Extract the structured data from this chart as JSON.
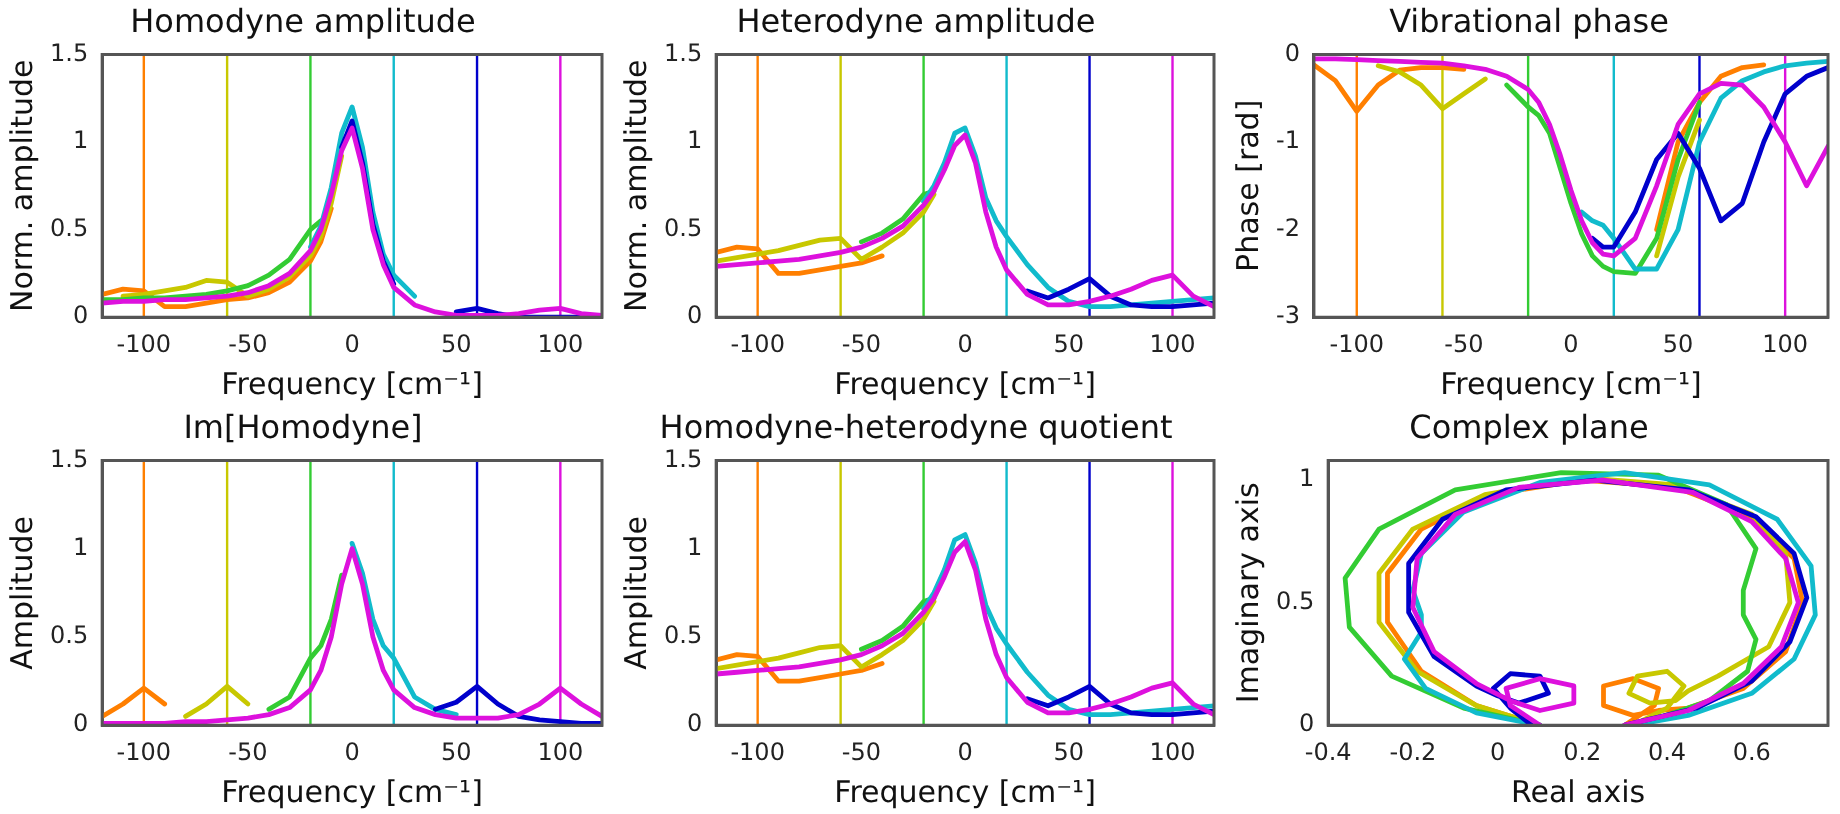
{
  "chart_data": [
    {
      "type": "line",
      "title": "Homodyne amplitude",
      "xlabel": "Frequency [cm⁻¹]",
      "ylabel": "Norm. amplitude",
      "xlim": [
        -120,
        120
      ],
      "xticks": [
        -100,
        -50,
        0,
        50,
        100
      ],
      "ylim": [
        0,
        1.5
      ],
      "yticks": [
        0,
        0.5,
        1,
        1.5
      ],
      "x": [
        -120,
        -110,
        -100,
        -90,
        -80,
        -70,
        -60,
        -50,
        -40,
        -30,
        -20,
        -15,
        -10,
        -5,
        0,
        5,
        10,
        15,
        20,
        30,
        40,
        50,
        60,
        70,
        80,
        90,
        100,
        110,
        120
      ],
      "ref_lines": [
        {
          "axis": "x",
          "value": -100,
          "color": "#ff7f00"
        },
        {
          "axis": "x",
          "value": -60,
          "color": "#c8c800"
        },
        {
          "axis": "x",
          "value": -20,
          "color": "#33cc33"
        },
        {
          "axis": "x",
          "value": 20,
          "color": "#11bbcc"
        },
        {
          "axis": "x",
          "value": 60,
          "color": "#0000cc"
        },
        {
          "axis": "x",
          "value": 100,
          "color": "#dd11dd"
        }
      ],
      "series": [
        {
          "color": "#ff7f00",
          "values": [
            0.13,
            0.16,
            0.15,
            0.06,
            0.06,
            0.08,
            0.1,
            0.11,
            0.14,
            0.2,
            0.32,
            0.43,
            0.62,
            null,
            null,
            null,
            null,
            null,
            null,
            null,
            null,
            null,
            null,
            null,
            null,
            null,
            null,
            null,
            null
          ]
        },
        {
          "color": "#c8c800",
          "values": [
            null,
            0.12,
            0.13,
            0.15,
            0.17,
            0.21,
            0.2,
            0.12,
            0.16,
            0.23,
            0.35,
            0.46,
            0.65,
            0.92,
            null,
            null,
            null,
            null,
            null,
            null,
            null,
            null,
            null,
            null,
            null,
            null,
            null,
            null,
            null
          ]
        },
        {
          "color": "#33cc33",
          "values": [
            0.1,
            0.1,
            0.11,
            0.11,
            0.12,
            0.13,
            0.15,
            0.18,
            0.24,
            0.33,
            0.5,
            0.55,
            null,
            null,
            null,
            null,
            null,
            null,
            null,
            null,
            null,
            null,
            null,
            null,
            null,
            null,
            null,
            null,
            null
          ]
        },
        {
          "color": "#11bbcc",
          "values": [
            null,
            null,
            null,
            null,
            null,
            null,
            null,
            null,
            null,
            null,
            0.4,
            0.52,
            0.74,
            1.05,
            1.2,
            0.97,
            0.6,
            0.36,
            0.24,
            0.12,
            null,
            null,
            null,
            null,
            null,
            null,
            null,
            null,
            null
          ]
        },
        {
          "color": "#0000cc",
          "values": [
            null,
            null,
            null,
            null,
            null,
            null,
            null,
            null,
            null,
            null,
            null,
            null,
            null,
            0.97,
            1.12,
            0.88,
            0.53,
            0.32,
            0.19,
            null,
            null,
            0.03,
            0.05,
            0.02,
            0,
            0,
            0,
            0,
            null
          ]
        },
        {
          "color": "#dd11dd",
          "values": [
            0.08,
            0.09,
            0.09,
            0.1,
            0.1,
            0.11,
            0.12,
            0.14,
            0.18,
            0.25,
            0.38,
            0.5,
            0.7,
            0.95,
            1.08,
            0.85,
            0.5,
            0.3,
            0.17,
            0.07,
            0.03,
            0.01,
            0.01,
            0.01,
            0.02,
            0.04,
            0.05,
            0.02,
            0.01
          ]
        }
      ]
    },
    {
      "type": "line",
      "title": "Heterodyne amplitude",
      "xlabel": "Frequency [cm⁻¹]",
      "ylabel": "Norm. amplitude",
      "xlim": [
        -120,
        120
      ],
      "xticks": [
        -100,
        -50,
        0,
        50,
        100
      ],
      "ylim": [
        0,
        1.5
      ],
      "yticks": [
        0,
        0.5,
        1,
        1.5
      ],
      "x": [
        -120,
        -110,
        -100,
        -90,
        -80,
        -70,
        -60,
        -50,
        -40,
        -30,
        -20,
        -15,
        -10,
        -5,
        0,
        5,
        10,
        15,
        20,
        30,
        40,
        50,
        60,
        70,
        80,
        90,
        100,
        110,
        120
      ],
      "ref_lines": [
        {
          "axis": "x",
          "value": -100,
          "color": "#ff7f00"
        },
        {
          "axis": "x",
          "value": -60,
          "color": "#c8c800"
        },
        {
          "axis": "x",
          "value": -20,
          "color": "#33cc33"
        },
        {
          "axis": "x",
          "value": 20,
          "color": "#11bbcc"
        },
        {
          "axis": "x",
          "value": 60,
          "color": "#0000cc"
        },
        {
          "axis": "x",
          "value": 100,
          "color": "#dd11dd"
        }
      ],
      "series": [
        {
          "color": "#ff7f00",
          "values": [
            0.37,
            0.4,
            0.39,
            0.25,
            0.25,
            0.27,
            0.29,
            0.31,
            0.35,
            null,
            null,
            null,
            null,
            null,
            null,
            null,
            null,
            null,
            null,
            null,
            null,
            null,
            null,
            null,
            null,
            null,
            null,
            null,
            null
          ]
        },
        {
          "color": "#c8c800",
          "values": [
            0.32,
            0.34,
            0.36,
            0.38,
            0.41,
            0.44,
            0.45,
            0.33,
            0.4,
            0.48,
            0.6,
            0.7,
            null,
            null,
            null,
            null,
            null,
            null,
            null,
            null,
            null,
            null,
            null,
            null,
            null,
            null,
            null,
            null,
            null
          ]
        },
        {
          "color": "#33cc33",
          "values": [
            null,
            null,
            null,
            null,
            null,
            null,
            null,
            0.43,
            0.48,
            0.56,
            0.7,
            0.72,
            null,
            null,
            null,
            null,
            null,
            null,
            null,
            null,
            null,
            null,
            null,
            null,
            null,
            null,
            null,
            null,
            null
          ]
        },
        {
          "color": "#11bbcc",
          "values": [
            null,
            null,
            null,
            null,
            null,
            null,
            null,
            null,
            null,
            null,
            0.66,
            0.75,
            0.88,
            1.05,
            1.08,
            0.92,
            0.68,
            0.55,
            0.46,
            0.3,
            0.17,
            0.09,
            0.06,
            0.06,
            0.07,
            0.08,
            0.09,
            0.1,
            0.11
          ]
        },
        {
          "color": "#0000cc",
          "values": [
            null,
            null,
            null,
            null,
            null,
            null,
            null,
            null,
            null,
            null,
            null,
            null,
            null,
            null,
            null,
            null,
            null,
            null,
            null,
            0.15,
            0.11,
            0.16,
            0.22,
            0.12,
            0.07,
            0.06,
            0.06,
            0.07,
            0.08
          ]
        },
        {
          "color": "#dd11dd",
          "values": [
            0.29,
            0.3,
            0.31,
            0.32,
            0.33,
            0.35,
            0.37,
            0.4,
            0.45,
            0.52,
            0.64,
            0.72,
            0.84,
            0.98,
            1.04,
            0.88,
            0.6,
            0.4,
            0.27,
            0.13,
            0.07,
            0.07,
            0.09,
            0.12,
            0.16,
            0.21,
            0.24,
            0.12,
            0.06
          ]
        }
      ]
    },
    {
      "type": "line",
      "title": "Vibrational phase",
      "xlabel": "Frequency [cm⁻¹]",
      "ylabel": "Phase [rad]",
      "xlim": [
        -120,
        120
      ],
      "xticks": [
        -100,
        -50,
        0,
        50,
        100
      ],
      "ylim": [
        -3,
        0
      ],
      "yticks": [
        -3,
        -2,
        -1,
        0
      ],
      "x": [
        -120,
        -110,
        -100,
        -90,
        -80,
        -70,
        -60,
        -50,
        -40,
        -30,
        -20,
        -15,
        -10,
        -5,
        0,
        5,
        10,
        15,
        20,
        30,
        40,
        50,
        60,
        70,
        80,
        90,
        100,
        110,
        120
      ],
      "ref_lines": [
        {
          "axis": "x",
          "value": -100,
          "color": "#ff7f00"
        },
        {
          "axis": "x",
          "value": -60,
          "color": "#c8c800"
        },
        {
          "axis": "x",
          "value": -20,
          "color": "#33cc33"
        },
        {
          "axis": "x",
          "value": 20,
          "color": "#11bbcc"
        },
        {
          "axis": "x",
          "value": 60,
          "color": "#0000cc"
        },
        {
          "axis": "x",
          "value": 100,
          "color": "#dd11dd"
        }
      ],
      "series": [
        {
          "color": "#ff7f00",
          "values": [
            -0.12,
            -0.3,
            -0.65,
            -0.35,
            -0.18,
            -0.15,
            -0.15,
            -0.17,
            null,
            null,
            null,
            null,
            null,
            null,
            null,
            null,
            null,
            null,
            null,
            null,
            -2.0,
            -1.0,
            -0.55,
            -0.25,
            -0.15,
            -0.12,
            null,
            null,
            null
          ]
        },
        {
          "color": "#c8c800",
          "values": [
            null,
            null,
            null,
            -0.13,
            -0.2,
            -0.35,
            -0.62,
            -0.45,
            -0.28,
            null,
            null,
            null,
            null,
            null,
            null,
            null,
            null,
            null,
            null,
            null,
            -2.3,
            -1.4,
            -0.75,
            null,
            null,
            null,
            null,
            null,
            null
          ]
        },
        {
          "color": "#33cc33",
          "values": [
            null,
            null,
            null,
            null,
            null,
            null,
            null,
            null,
            null,
            -0.35,
            -0.6,
            -0.7,
            -0.9,
            -1.3,
            -1.7,
            -2.05,
            -2.3,
            -2.42,
            -2.48,
            -2.5,
            -2.1,
            -1.2,
            -0.55,
            null,
            null,
            null,
            null,
            null,
            null
          ]
        },
        {
          "color": "#11bbcc",
          "values": [
            null,
            null,
            null,
            null,
            null,
            null,
            null,
            null,
            null,
            null,
            null,
            null,
            null,
            null,
            null,
            -1.8,
            -1.9,
            -1.95,
            -2.1,
            -2.45,
            -2.45,
            -2.0,
            -1.0,
            -0.5,
            -0.3,
            -0.2,
            -0.13,
            -0.1,
            -0.08
          ]
        },
        {
          "color": "#0000cc",
          "values": [
            null,
            null,
            null,
            null,
            null,
            null,
            null,
            null,
            null,
            null,
            null,
            null,
            null,
            null,
            null,
            null,
            -2.1,
            -2.2,
            -2.2,
            -1.8,
            -1.2,
            -0.9,
            -1.3,
            -1.9,
            -1.7,
            -1.0,
            -0.45,
            -0.25,
            -0.15
          ]
        },
        {
          "color": "#dd11dd",
          "values": [
            -0.05,
            -0.05,
            -0.06,
            -0.07,
            -0.08,
            -0.09,
            -0.1,
            -0.13,
            -0.17,
            -0.25,
            -0.4,
            -0.55,
            -0.8,
            -1.15,
            -1.55,
            -1.9,
            -2.15,
            -2.28,
            -2.3,
            -2.1,
            -1.5,
            -0.8,
            -0.45,
            -0.33,
            -0.35,
            -0.6,
            -1.0,
            -1.5,
            -1.05
          ]
        }
      ]
    },
    {
      "type": "line",
      "title": "Im[Homodyne]",
      "xlabel": "Frequency [cm⁻¹]",
      "ylabel": "Amplitude",
      "xlim": [
        -120,
        120
      ],
      "xticks": [
        -100,
        -50,
        0,
        50,
        100
      ],
      "ylim": [
        0,
        1.5
      ],
      "yticks": [
        0,
        0.5,
        1,
        1.5
      ],
      "x": [
        -120,
        -110,
        -100,
        -90,
        -80,
        -70,
        -60,
        -50,
        -40,
        -30,
        -20,
        -15,
        -10,
        -5,
        0,
        5,
        10,
        15,
        20,
        30,
        40,
        50,
        60,
        70,
        80,
        90,
        100,
        110,
        120
      ],
      "ref_lines": [
        {
          "axis": "x",
          "value": -100,
          "color": "#ff7f00"
        },
        {
          "axis": "x",
          "value": -60,
          "color": "#c8c800"
        },
        {
          "axis": "x",
          "value": -20,
          "color": "#33cc33"
        },
        {
          "axis": "x",
          "value": 20,
          "color": "#11bbcc"
        },
        {
          "axis": "x",
          "value": 60,
          "color": "#0000cc"
        },
        {
          "axis": "x",
          "value": 100,
          "color": "#dd11dd"
        }
      ],
      "series": [
        {
          "color": "#ff7f00",
          "values": [
            0.05,
            0.12,
            0.21,
            0.12,
            null,
            null,
            null,
            null,
            null,
            null,
            null,
            null,
            null,
            null,
            null,
            null,
            null,
            null,
            null,
            null,
            null,
            null,
            null,
            null,
            null,
            null,
            null,
            null,
            null
          ]
        },
        {
          "color": "#c8c800",
          "values": [
            null,
            null,
            null,
            null,
            0.05,
            0.12,
            0.22,
            0.12,
            null,
            null,
            null,
            null,
            null,
            null,
            null,
            null,
            null,
            null,
            null,
            null,
            null,
            null,
            null,
            null,
            null,
            null,
            null,
            null,
            null
          ]
        },
        {
          "color": "#33cc33",
          "values": [
            null,
            null,
            null,
            null,
            null,
            null,
            null,
            null,
            0.09,
            0.16,
            0.38,
            0.45,
            0.6,
            0.85,
            null,
            null,
            null,
            null,
            null,
            null,
            null,
            null,
            null,
            null,
            null,
            null,
            null,
            null,
            null
          ]
        },
        {
          "color": "#11bbcc",
          "values": [
            null,
            null,
            null,
            null,
            null,
            null,
            null,
            null,
            null,
            null,
            null,
            null,
            null,
            null,
            1.03,
            0.86,
            0.6,
            0.45,
            0.38,
            0.16,
            0.09,
            0.06,
            null,
            null,
            null,
            null,
            null,
            null,
            null
          ]
        },
        {
          "color": "#0000cc",
          "values": [
            null,
            null,
            null,
            null,
            null,
            null,
            null,
            null,
            null,
            null,
            null,
            null,
            null,
            null,
            null,
            null,
            null,
            null,
            null,
            null,
            0.09,
            0.13,
            0.22,
            0.12,
            0.05,
            0.03,
            0.02,
            0.01,
            0.01
          ]
        },
        {
          "color": "#dd11dd",
          "values": [
            0.01,
            0.01,
            0.01,
            0.01,
            0.02,
            0.02,
            0.03,
            0.04,
            0.06,
            0.1,
            0.2,
            0.31,
            0.5,
            0.8,
            1.0,
            0.8,
            0.5,
            0.31,
            0.2,
            0.1,
            0.06,
            0.04,
            0.04,
            0.04,
            0.06,
            0.12,
            0.21,
            0.12,
            0.05
          ]
        }
      ]
    },
    {
      "type": "line",
      "title": "Homodyne-heterodyne quotient",
      "xlabel": "Frequency [cm⁻¹]",
      "ylabel": "Amplitude",
      "xlim": [
        -120,
        120
      ],
      "xticks": [
        -100,
        -50,
        0,
        50,
        100
      ],
      "ylim": [
        0,
        1.5
      ],
      "yticks": [
        0,
        0.5,
        1,
        1.5
      ],
      "x": [
        -120,
        -110,
        -100,
        -90,
        -80,
        -70,
        -60,
        -50,
        -40,
        -30,
        -20,
        -15,
        -10,
        -5,
        0,
        5,
        10,
        15,
        20,
        30,
        40,
        50,
        60,
        70,
        80,
        90,
        100,
        110,
        120
      ],
      "ref_lines": [
        {
          "axis": "x",
          "value": -100,
          "color": "#ff7f00"
        },
        {
          "axis": "x",
          "value": -60,
          "color": "#c8c800"
        },
        {
          "axis": "x",
          "value": -20,
          "color": "#33cc33"
        },
        {
          "axis": "x",
          "value": 20,
          "color": "#11bbcc"
        },
        {
          "axis": "x",
          "value": 60,
          "color": "#0000cc"
        },
        {
          "axis": "x",
          "value": 100,
          "color": "#dd11dd"
        }
      ],
      "series": [
        {
          "color": "#ff7f00",
          "values": [
            0.37,
            0.4,
            0.39,
            0.25,
            0.25,
            0.27,
            0.29,
            0.31,
            0.35,
            null,
            null,
            null,
            null,
            null,
            null,
            null,
            null,
            null,
            null,
            null,
            null,
            null,
            null,
            null,
            null,
            null,
            null,
            null,
            null
          ]
        },
        {
          "color": "#c8c800",
          "values": [
            0.32,
            0.34,
            0.36,
            0.38,
            0.41,
            0.44,
            0.45,
            0.33,
            0.4,
            0.48,
            0.6,
            0.7,
            null,
            null,
            null,
            null,
            null,
            null,
            null,
            null,
            null,
            null,
            null,
            null,
            null,
            null,
            null,
            null,
            null
          ]
        },
        {
          "color": "#33cc33",
          "values": [
            null,
            null,
            null,
            null,
            null,
            null,
            null,
            0.43,
            0.48,
            0.56,
            0.7,
            0.72,
            null,
            null,
            null,
            null,
            null,
            null,
            null,
            null,
            null,
            null,
            null,
            null,
            null,
            null,
            null,
            null,
            null
          ]
        },
        {
          "color": "#11bbcc",
          "values": [
            null,
            null,
            null,
            null,
            null,
            null,
            null,
            null,
            null,
            null,
            0.66,
            0.75,
            0.88,
            1.05,
            1.08,
            0.92,
            0.68,
            0.55,
            0.46,
            0.3,
            0.17,
            0.09,
            0.06,
            0.06,
            0.07,
            0.08,
            0.09,
            0.1,
            0.11
          ]
        },
        {
          "color": "#0000cc",
          "values": [
            null,
            null,
            null,
            null,
            null,
            null,
            null,
            null,
            null,
            null,
            null,
            null,
            null,
            null,
            null,
            null,
            null,
            null,
            null,
            0.15,
            0.11,
            0.16,
            0.22,
            0.12,
            0.07,
            0.06,
            0.06,
            0.07,
            0.08
          ]
        },
        {
          "color": "#dd11dd",
          "values": [
            0.29,
            0.3,
            0.31,
            0.32,
            0.33,
            0.35,
            0.37,
            0.4,
            0.45,
            0.52,
            0.64,
            0.72,
            0.84,
            0.98,
            1.04,
            0.88,
            0.6,
            0.4,
            0.27,
            0.13,
            0.07,
            0.07,
            0.09,
            0.12,
            0.16,
            0.21,
            0.24,
            0.12,
            0.06
          ]
        }
      ]
    },
    {
      "type": "line",
      "title": "Complex plane",
      "xlabel": "Real axis",
      "ylabel": "Imaginary axis",
      "xlim": [
        -0.4,
        0.78
      ],
      "xticks": [
        -0.4,
        -0.2,
        0,
        0.2,
        0.4,
        0.6
      ],
      "ylim": [
        0,
        1.08
      ],
      "yticks": [
        0,
        0.5,
        1
      ],
      "series": [
        {
          "color": "#ff7f00",
          "x": [
            0.1,
            -0.05,
            -0.18,
            -0.26,
            -0.26,
            -0.18,
            -0.02,
            0.2,
            0.42,
            0.6,
            0.7,
            0.72,
            0.68,
            0.58,
            0.45,
            0.38,
            0.32,
            0.25,
            0.25,
            0.32,
            0.38,
            0.37,
            0.3
          ],
          "values": [
            0,
            0.08,
            0.22,
            0.42,
            0.62,
            0.8,
            0.94,
            1.0,
            0.97,
            0.85,
            0.68,
            0.5,
            0.3,
            0.15,
            0.07,
            0.06,
            0.04,
            0.08,
            0.16,
            0.19,
            0.15,
            0.08,
            0
          ]
        },
        {
          "color": "#c8c800",
          "x": [
            0.1,
            -0.05,
            -0.19,
            -0.28,
            -0.28,
            -0.2,
            -0.03,
            0.2,
            0.42,
            0.6,
            0.68,
            0.69,
            0.64,
            0.52,
            0.45,
            0.42,
            0.36,
            0.31,
            0.33,
            0.4,
            0.44,
            0.4,
            0.32
          ],
          "values": [
            0,
            0.08,
            0.22,
            0.42,
            0.62,
            0.8,
            0.94,
            1.01,
            0.98,
            0.86,
            0.7,
            0.5,
            0.32,
            0.2,
            0.14,
            0.1,
            0.09,
            0.13,
            0.2,
            0.22,
            0.16,
            0.07,
            0
          ]
        },
        {
          "color": "#33cc33",
          "x": [
            0.1,
            -0.08,
            -0.25,
            -0.35,
            -0.36,
            -0.28,
            -0.1,
            0.15,
            0.38,
            0.54,
            0.61,
            0.58,
            0.58,
            0.61,
            0.59,
            0.5,
            0.38,
            0.32
          ],
          "values": [
            0,
            0.07,
            0.2,
            0.4,
            0.6,
            0.8,
            0.96,
            1.03,
            1.02,
            0.9,
            0.72,
            0.55,
            0.45,
            0.35,
            0.22,
            0.1,
            0.03,
            0
          ]
        },
        {
          "color": "#11bbcc",
          "x": [
            0.1,
            -0.05,
            -0.17,
            -0.22,
            -0.18,
            -0.18,
            -0.2,
            -0.18,
            -0.08,
            0.1,
            0.3,
            0.5,
            0.66,
            0.74,
            0.75,
            0.7,
            0.6,
            0.45,
            0.32
          ],
          "values": [
            0,
            0.05,
            0.15,
            0.27,
            0.38,
            0.45,
            0.55,
            0.7,
            0.87,
            0.99,
            1.03,
            0.98,
            0.84,
            0.65,
            0.45,
            0.27,
            0.13,
            0.04,
            0
          ]
        },
        {
          "color": "#0000cc",
          "x": [
            0.3,
            0.47,
            0.6,
            0.69,
            0.73,
            0.7,
            0.61,
            0.45,
            0.23,
            0.02,
            -0.13,
            -0.21,
            -0.21,
            -0.15,
            -0.05,
            0.0,
            0.05,
            0.12,
            0.1,
            0.03,
            -0.01,
            0.03,
            0.08
          ],
          "values": [
            0,
            0.07,
            0.18,
            0.34,
            0.52,
            0.7,
            0.85,
            0.96,
            1.0,
            0.96,
            0.84,
            0.66,
            0.46,
            0.28,
            0.16,
            0.12,
            0.09,
            0.13,
            0.2,
            0.21,
            0.15,
            0.07,
            0
          ]
        },
        {
          "color": "#dd11dd",
          "x": [
            0.3,
            0.45,
            0.58,
            0.67,
            0.71,
            0.68,
            0.6,
            0.46,
            0.25,
            0.05,
            -0.1,
            -0.19,
            -0.2,
            -0.15,
            -0.05,
            0.03,
            0.1,
            0.18,
            0.18,
            0.1,
            0.02,
            0.03,
            0.1
          ],
          "values": [
            0,
            0.06,
            0.17,
            0.32,
            0.5,
            0.68,
            0.83,
            0.95,
            1.0,
            0.97,
            0.86,
            0.68,
            0.48,
            0.3,
            0.17,
            0.1,
            0.06,
            0.09,
            0.16,
            0.19,
            0.15,
            0.08,
            0
          ]
        }
      ]
    }
  ]
}
